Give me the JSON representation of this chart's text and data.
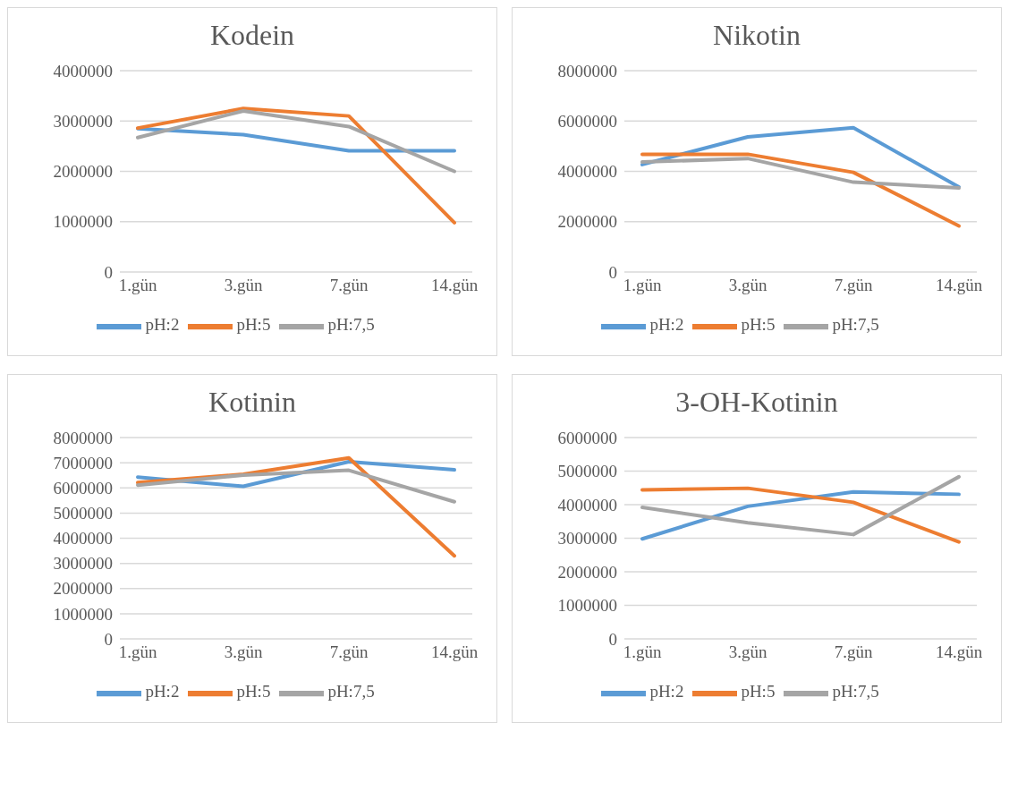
{
  "chart_data": [
    {
      "type": "line",
      "title": "Kodein",
      "categories": [
        "1.gün",
        "3.gün",
        "7.gün",
        "14.gün"
      ],
      "ylim": [
        0,
        4000000
      ],
      "yticks": [
        0,
        1000000,
        2000000,
        3000000,
        4000000
      ],
      "grid": "y",
      "legend": "bottom",
      "marker": "none",
      "line_style": "solid",
      "series": [
        {
          "name": "pH:2",
          "color": "#5b9bd5",
          "values": [
            2850000,
            2730000,
            2410000,
            2410000
          ]
        },
        {
          "name": "pH:5",
          "color": "#ed7d31",
          "values": [
            2860000,
            3250000,
            3100000,
            980000
          ]
        },
        {
          "name": "pH:7,5",
          "color": "#a5a5a5",
          "values": [
            2670000,
            3200000,
            2890000,
            2000000
          ]
        }
      ]
    },
    {
      "type": "line",
      "title": "Nikotin",
      "categories": [
        "1.gün",
        "3.gün",
        "7.gün",
        "14.gün"
      ],
      "ylim": [
        0,
        8000000
      ],
      "yticks": [
        0,
        2000000,
        4000000,
        6000000,
        8000000
      ],
      "grid": "y",
      "legend": "bottom",
      "marker": "none",
      "line_style": "solid",
      "series": [
        {
          "name": "pH:2",
          "color": "#5b9bd5",
          "values": [
            4270000,
            5370000,
            5730000,
            3380000
          ]
        },
        {
          "name": "pH:5",
          "color": "#ed7d31",
          "values": [
            4680000,
            4680000,
            3960000,
            1830000
          ]
        },
        {
          "name": "pH:7,5",
          "color": "#a5a5a5",
          "values": [
            4370000,
            4510000,
            3570000,
            3340000
          ]
        }
      ]
    },
    {
      "type": "line",
      "title": "Kotinin",
      "categories": [
        "1.gün",
        "3.gün",
        "7.gün",
        "14.gün"
      ],
      "ylim": [
        0,
        8000000
      ],
      "yticks": [
        0,
        1000000,
        2000000,
        3000000,
        4000000,
        5000000,
        6000000,
        7000000,
        8000000
      ],
      "grid": "y",
      "legend": "bottom",
      "marker": "none",
      "line_style": "solid",
      "series": [
        {
          "name": "pH:2",
          "color": "#5b9bd5",
          "values": [
            6430000,
            6060000,
            7040000,
            6720000
          ]
        },
        {
          "name": "pH:5",
          "color": "#ed7d31",
          "values": [
            6210000,
            6540000,
            7190000,
            3300000
          ]
        },
        {
          "name": "pH:7,5",
          "color": "#a5a5a5",
          "values": [
            6110000,
            6510000,
            6700000,
            5450000
          ]
        }
      ]
    },
    {
      "type": "line",
      "title": "3-OH-Kotinin",
      "categories": [
        "1.gün",
        "3.gün",
        "7.gün",
        "14.gün"
      ],
      "ylim": [
        0,
        6000000
      ],
      "yticks": [
        0,
        1000000,
        2000000,
        3000000,
        4000000,
        5000000,
        6000000
      ],
      "grid": "y",
      "legend": "bottom",
      "marker": "none",
      "line_style": "solid",
      "series": [
        {
          "name": "pH:2",
          "color": "#5b9bd5",
          "values": [
            2980000,
            3950000,
            4380000,
            4310000
          ]
        },
        {
          "name": "pH:5",
          "color": "#ed7d31",
          "values": [
            4440000,
            4490000,
            4070000,
            2890000
          ]
        },
        {
          "name": "pH:7,5",
          "color": "#a5a5a5",
          "values": [
            3920000,
            3460000,
            3110000,
            4830000
          ]
        }
      ]
    }
  ]
}
